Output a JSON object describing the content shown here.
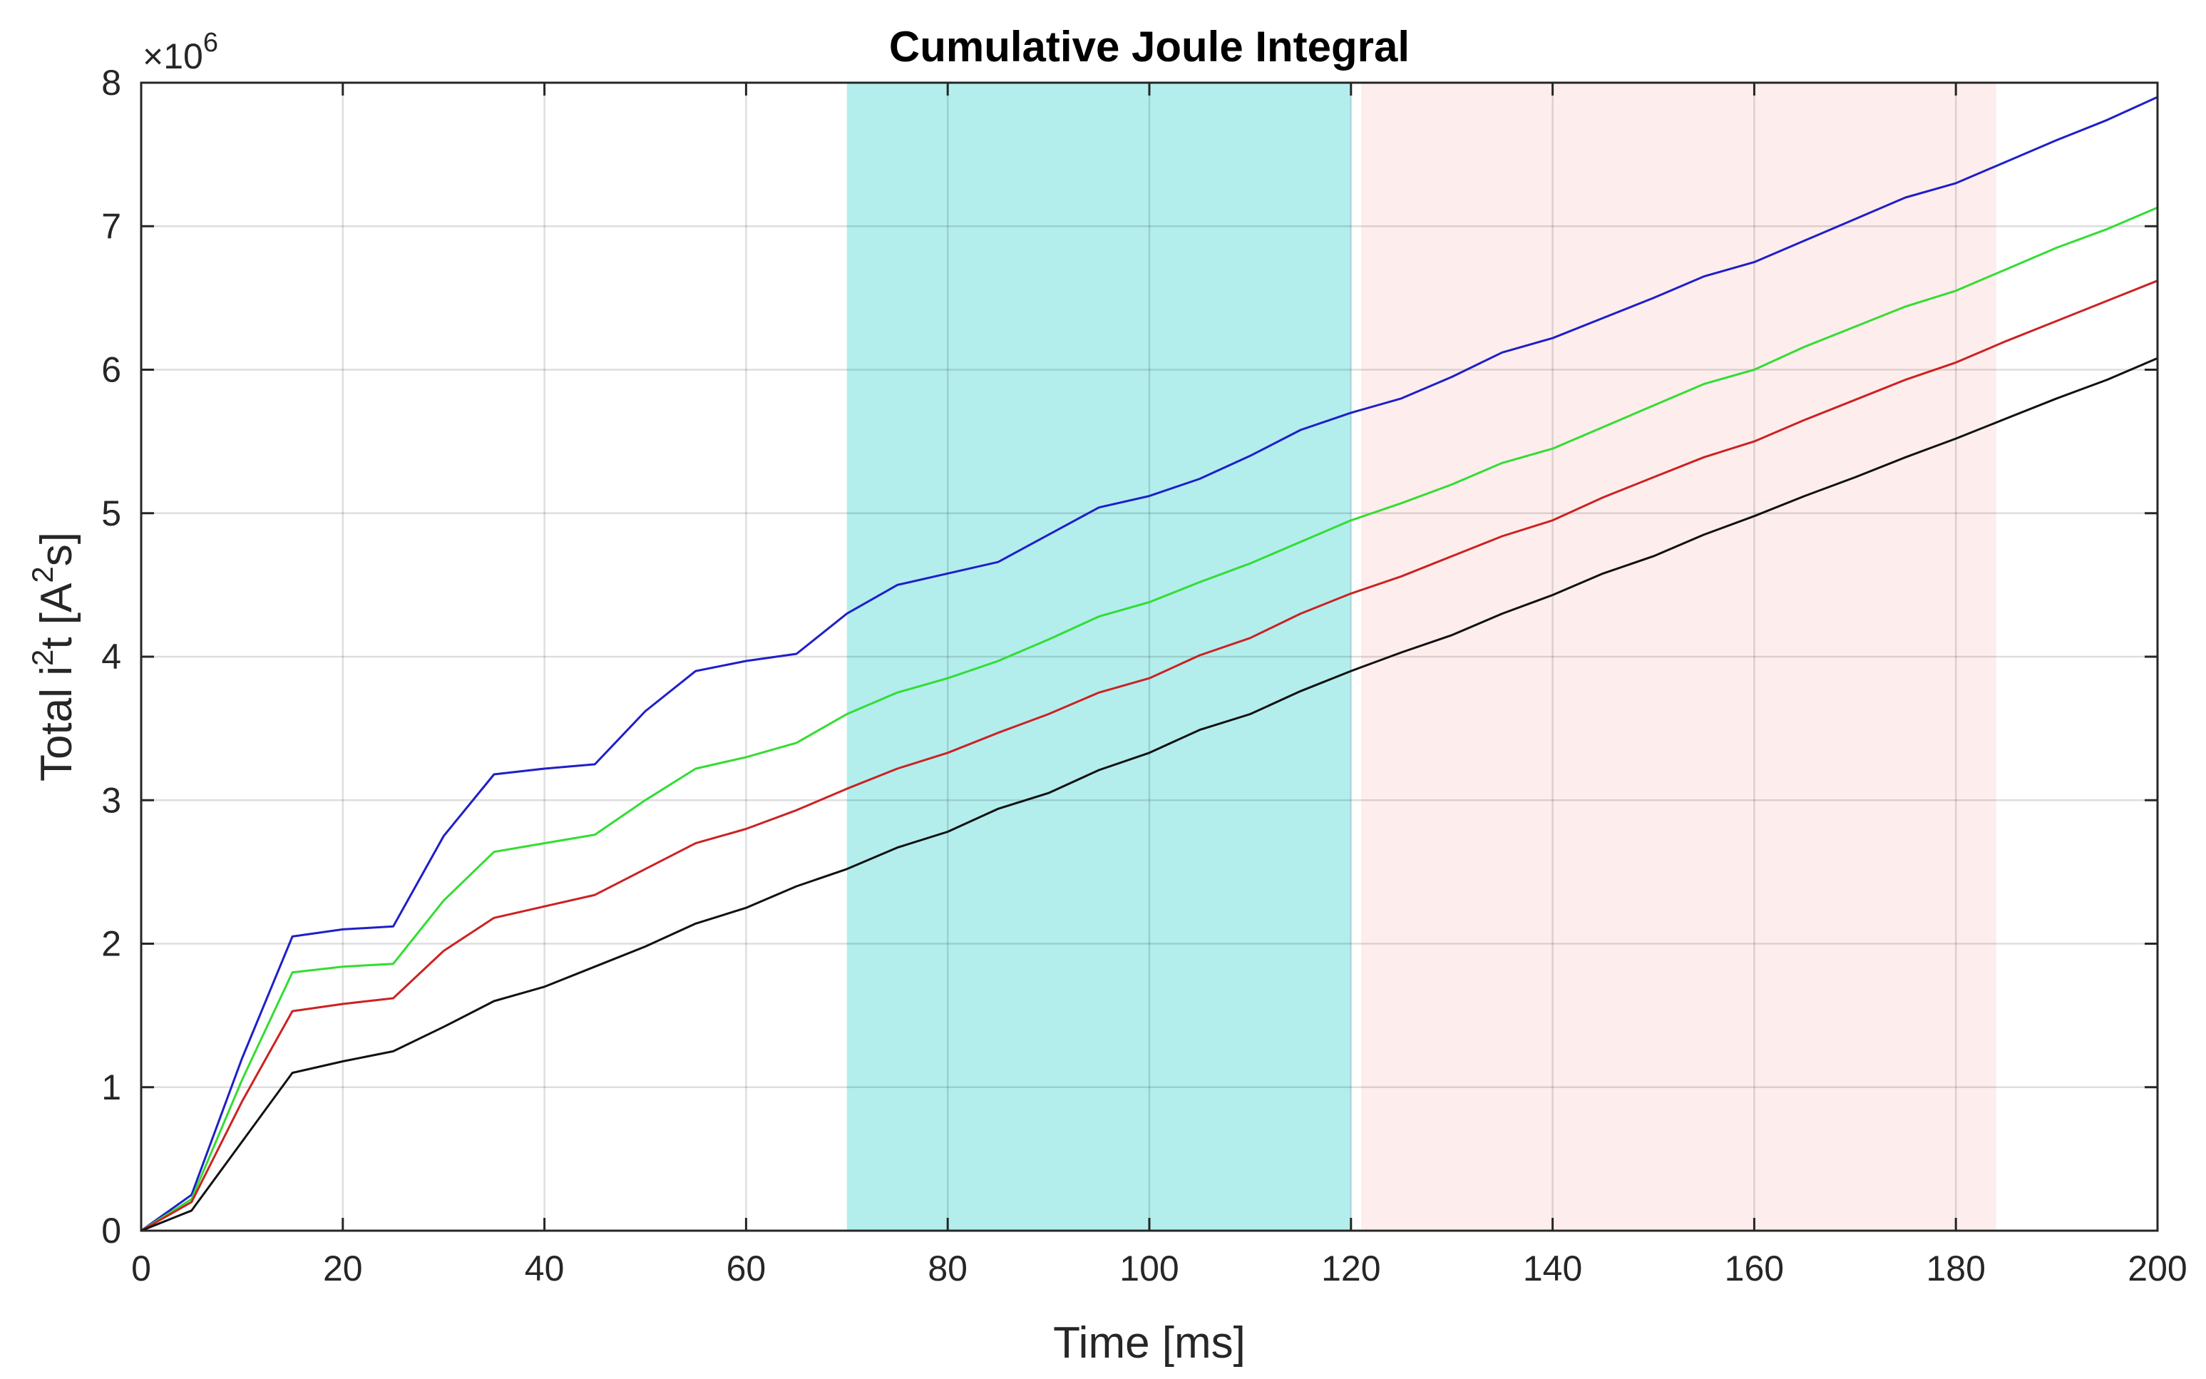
{
  "chart_data": {
    "type": "line",
    "title": "Cumulative Joule Integral",
    "xlabel": "Time [ms]",
    "ylabel_base": "Total i",
    "ylabel_sup1": "2",
    "ylabel_mid": "t [A",
    "ylabel_sup2": "2",
    "ylabel_end": "s]",
    "exponent_prefix": "×10",
    "exponent_power": "6",
    "xlim": [
      0,
      200
    ],
    "ylim": [
      0,
      8
    ],
    "y_scale_factor": 1000000,
    "xticks": [
      "0",
      "20",
      "40",
      "60",
      "80",
      "100",
      "120",
      "140",
      "160",
      "180",
      "200"
    ],
    "yticks": [
      "0",
      "1",
      "2",
      "3",
      "4",
      "5",
      "6",
      "7",
      "8"
    ],
    "grid": true,
    "legend": false,
    "shaded_regions": [
      {
        "x_start": 70,
        "x_end": 120,
        "color": "#b3eeed"
      },
      {
        "x_start": 121,
        "x_end": 184,
        "color": "#fdeeed"
      }
    ],
    "series": [
      {
        "color": "#1f1fc8",
        "x": [
          0,
          5,
          10,
          15,
          20,
          25,
          30,
          35,
          40,
          45,
          50,
          55,
          60,
          65,
          70,
          75,
          80,
          85,
          90,
          95,
          100,
          105,
          110,
          115,
          120,
          125,
          130,
          135,
          140,
          145,
          150,
          155,
          160,
          165,
          170,
          175,
          180,
          185,
          190,
          195,
          200
        ],
        "values": [
          0,
          0.25,
          1.2,
          2.05,
          2.1,
          2.12,
          2.75,
          3.18,
          3.22,
          3.25,
          3.62,
          3.9,
          3.97,
          4.02,
          4.3,
          4.5,
          4.58,
          4.66,
          4.85,
          5.04,
          5.12,
          5.24,
          5.4,
          5.58,
          5.7,
          5.8,
          5.95,
          6.12,
          6.22,
          6.36,
          6.5,
          6.65,
          6.75,
          6.9,
          7.05,
          7.2,
          7.3,
          7.45,
          7.6,
          7.74,
          7.9
        ]
      },
      {
        "color": "#33dd33",
        "x": [
          0,
          5,
          10,
          15,
          20,
          25,
          30,
          35,
          40,
          45,
          50,
          55,
          60,
          65,
          70,
          75,
          80,
          85,
          90,
          95,
          100,
          105,
          110,
          115,
          120,
          125,
          130,
          135,
          140,
          145,
          150,
          155,
          160,
          165,
          170,
          175,
          180,
          185,
          190,
          195,
          200
        ],
        "values": [
          0,
          0.22,
          1.05,
          1.8,
          1.84,
          1.86,
          2.3,
          2.64,
          2.7,
          2.76,
          3.0,
          3.22,
          3.3,
          3.4,
          3.6,
          3.75,
          3.85,
          3.97,
          4.12,
          4.28,
          4.38,
          4.52,
          4.65,
          4.8,
          4.95,
          5.07,
          5.2,
          5.35,
          5.45,
          5.6,
          5.75,
          5.9,
          6.0,
          6.16,
          6.3,
          6.44,
          6.55,
          6.7,
          6.85,
          6.98,
          7.13
        ]
      },
      {
        "color": "#cc2222",
        "x": [
          0,
          5,
          10,
          15,
          20,
          25,
          30,
          35,
          40,
          45,
          50,
          55,
          60,
          65,
          70,
          75,
          80,
          85,
          90,
          95,
          100,
          105,
          110,
          115,
          120,
          125,
          130,
          135,
          140,
          145,
          150,
          155,
          160,
          165,
          170,
          175,
          180,
          185,
          190,
          195,
          200
        ],
        "values": [
          0,
          0.2,
          0.9,
          1.53,
          1.58,
          1.62,
          1.95,
          2.18,
          2.26,
          2.34,
          2.52,
          2.7,
          2.8,
          2.93,
          3.08,
          3.22,
          3.33,
          3.47,
          3.6,
          3.75,
          3.85,
          4.01,
          4.13,
          4.3,
          4.44,
          4.56,
          4.7,
          4.84,
          4.95,
          5.11,
          5.25,
          5.39,
          5.5,
          5.65,
          5.79,
          5.93,
          6.05,
          6.2,
          6.34,
          6.48,
          6.62
        ]
      },
      {
        "color": "#111111",
        "x": [
          0,
          5,
          10,
          15,
          20,
          25,
          30,
          35,
          40,
          45,
          50,
          55,
          60,
          65,
          70,
          75,
          80,
          85,
          90,
          95,
          100,
          105,
          110,
          115,
          120,
          125,
          130,
          135,
          140,
          145,
          150,
          155,
          160,
          165,
          170,
          175,
          180,
          185,
          190,
          195,
          200
        ],
        "values": [
          0,
          0.14,
          0.62,
          1.1,
          1.18,
          1.25,
          1.42,
          1.6,
          1.7,
          1.84,
          1.98,
          2.14,
          2.25,
          2.4,
          2.52,
          2.67,
          2.78,
          2.94,
          3.05,
          3.21,
          3.33,
          3.49,
          3.6,
          3.76,
          3.9,
          4.03,
          4.15,
          4.3,
          4.43,
          4.58,
          4.7,
          4.85,
          4.98,
          5.12,
          5.25,
          5.39,
          5.52,
          5.66,
          5.8,
          5.93,
          6.08
        ]
      }
    ]
  }
}
